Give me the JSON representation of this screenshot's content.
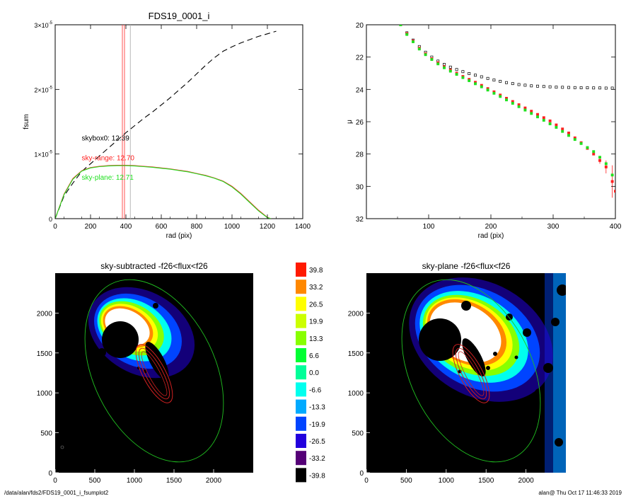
{
  "footer": {
    "path": "/data/alan/fds2/FDS19_0001_i_fsumplot2",
    "stamp": "alan@  Thu Oct 17 11:46:33 2019"
  },
  "chart_data": [
    {
      "type": "line",
      "title": "FDS19_0001_i",
      "xlabel": "rad (pix)",
      "ylabel": "fsum",
      "xlim": [
        0,
        1400
      ],
      "ylim": [
        0,
        3e-05
      ],
      "xticks": [
        0,
        200,
        400,
        600,
        800,
        1000,
        1200,
        1400
      ],
      "xtick_labels": [
        "0",
        "200",
        "400",
        "600",
        "800",
        "1000",
        "1200",
        "1400"
      ],
      "yticks": [
        0,
        1e-05,
        2e-05,
        3e-05
      ],
      "ytick_labels": [
        {
          "mantissa": "0",
          "exponent": ""
        },
        {
          "mantissa": "1×10",
          "exponent": "-5"
        },
        {
          "mantissa": "2×10",
          "exponent": "-5"
        },
        {
          "mantissa": "3×10",
          "exponent": "-5"
        }
      ],
      "annotations": [
        {
          "text": "skybox0: 12.39",
          "x": 230,
          "y": 1.21e-05,
          "color": "#000000"
        },
        {
          "text": "sky-range: 12.70",
          "x": 230,
          "y": 9.05e-06,
          "color": "#ff2020"
        },
        {
          "text": "sky-plane: 12.71",
          "x": 230,
          "y": 6e-06,
          "color": "#20e020"
        }
      ],
      "vlines": [
        {
          "x": 380,
          "color": "#ff4040"
        },
        {
          "x": 392,
          "color": "#ff4040"
        },
        {
          "x": 425,
          "color": "#b0b0b0"
        }
      ],
      "series": [
        {
          "color": "#000000",
          "style": "dashed",
          "x": [
            0,
            50,
            100,
            150,
            200,
            250,
            300,
            350,
            400,
            450,
            500,
            550,
            600,
            650,
            700,
            750,
            800,
            850,
            900,
            950,
            1000,
            1050,
            1100,
            1150,
            1200,
            1250
          ],
          "y": [
            0,
            3.5e-06,
            5.5e-06,
            7.3e-06,
            8.5e-06,
            9.7e-06,
            1.09e-05,
            1.21e-05,
            1.33e-05,
            1.44e-05,
            1.55e-05,
            1.65e-05,
            1.76e-05,
            1.87e-05,
            1.99e-05,
            2.11e-05,
            2.24e-05,
            2.37e-05,
            2.49e-05,
            2.59e-05,
            2.66e-05,
            2.72e-05,
            2.77e-05,
            2.82e-05,
            2.86e-05,
            2.9e-05
          ]
        },
        {
          "color": "#ff2020",
          "style": "solid",
          "x": [
            0,
            50,
            100,
            150,
            200,
            250,
            300,
            350,
            400,
            450,
            500,
            550,
            600,
            650,
            700,
            750,
            800,
            850,
            900,
            950,
            1000,
            1050,
            1100,
            1150,
            1200,
            1220
          ],
          "y": [
            0,
            3.8e-06,
            6.2e-06,
            7.4e-06,
            7.9e-06,
            8.1e-06,
            8.2e-06,
            8.25e-06,
            8.25e-06,
            8.2e-06,
            8.1e-06,
            8e-06,
            7.85e-06,
            7.7e-06,
            7.5e-06,
            7.3e-06,
            7e-06,
            6.7e-06,
            6.3e-06,
            5.8e-06,
            5e-06,
            3.9e-06,
            2.6e-06,
            1.3e-06,
            2e-07,
            0
          ]
        },
        {
          "color": "#20e020",
          "style": "solid",
          "x": [
            0,
            50,
            100,
            150,
            200,
            250,
            300,
            350,
            400,
            450,
            500,
            550,
            600,
            650,
            700,
            750,
            800,
            850,
            900,
            950,
            1000,
            1050,
            1100,
            1150,
            1200,
            1220
          ],
          "y": [
            0,
            3.7e-06,
            6.1e-06,
            7.35e-06,
            7.85e-06,
            8.05e-06,
            8.15e-06,
            8.2e-06,
            8.2e-06,
            8.15e-06,
            8.05e-06,
            7.95e-06,
            7.8e-06,
            7.65e-06,
            7.45e-06,
            7.25e-06,
            6.95e-06,
            6.65e-06,
            6.25e-06,
            5.75e-06,
            4.9e-06,
            3.8e-06,
            2.5e-06,
            1.2e-06,
            1.5e-07,
            0
          ]
        }
      ]
    },
    {
      "type": "scatter",
      "title": "",
      "xlabel": "rad (pix)",
      "ylabel": "μ",
      "xlim": [
        0,
        400
      ],
      "ylim": [
        32,
        20
      ],
      "xticks": [
        100,
        200,
        300,
        400
      ],
      "xtick_labels": [
        "100",
        "200",
        "300",
        "400"
      ],
      "yticks": [
        20,
        22,
        24,
        26,
        28,
        30,
        32
      ],
      "ytick_labels": [
        "20",
        "22",
        "24",
        "26",
        "28",
        "30",
        "32"
      ],
      "series": [
        {
          "color": "#000000",
          "marker": "open-square",
          "x": [
            55,
            65,
            75,
            85,
            95,
            105,
            115,
            125,
            135,
            145,
            155,
            165,
            175,
            185,
            195,
            205,
            215,
            225,
            235,
            245,
            255,
            265,
            275,
            285,
            295,
            305,
            315,
            325,
            335,
            345,
            355,
            365,
            375,
            385,
            395
          ],
          "y": [
            20.0,
            20.5,
            20.95,
            21.35,
            21.7,
            22.0,
            22.25,
            22.45,
            22.62,
            22.77,
            22.9,
            23.02,
            23.12,
            23.22,
            23.32,
            23.42,
            23.5,
            23.58,
            23.64,
            23.7,
            23.74,
            23.78,
            23.8,
            23.82,
            23.84,
            23.86,
            23.87,
            23.88,
            23.89,
            23.9,
            23.9,
            23.91,
            23.91,
            23.92,
            23.92
          ]
        },
        {
          "color": "#ff2020",
          "marker": "filled-square",
          "x": [
            55,
            65,
            75,
            85,
            95,
            105,
            115,
            125,
            135,
            145,
            155,
            165,
            175,
            185,
            195,
            205,
            215,
            225,
            235,
            245,
            255,
            265,
            275,
            285,
            295,
            305,
            315,
            325,
            335,
            345,
            355,
            365,
            375,
            385,
            395,
            400
          ],
          "y": [
            20.0,
            20.55,
            21.0,
            21.45,
            21.8,
            22.1,
            22.35,
            22.6,
            22.8,
            23.0,
            23.2,
            23.38,
            23.56,
            23.75,
            23.95,
            24.15,
            24.35,
            24.55,
            24.75,
            24.95,
            25.15,
            25.35,
            25.55,
            25.75,
            25.95,
            26.2,
            26.45,
            26.7,
            27.0,
            27.3,
            27.65,
            28.0,
            28.4,
            28.8,
            29.7,
            30.3
          ],
          "err_x": [
            375,
            385,
            395
          ],
          "err_y": [
            0.2,
            0.4,
            1.0
          ]
        },
        {
          "color": "#20e020",
          "marker": "filled-square",
          "x": [
            55,
            65,
            75,
            85,
            95,
            105,
            115,
            125,
            135,
            145,
            155,
            165,
            175,
            185,
            195,
            205,
            215,
            225,
            235,
            245,
            255,
            265,
            275,
            285,
            295,
            305,
            315,
            325,
            335,
            345,
            355,
            365,
            375,
            385,
            395
          ],
          "y": [
            20.0,
            20.6,
            21.05,
            21.5,
            21.85,
            22.15,
            22.42,
            22.66,
            22.87,
            23.07,
            23.27,
            23.46,
            23.65,
            23.84,
            24.04,
            24.24,
            24.44,
            24.65,
            24.86,
            25.07,
            25.28,
            25.49,
            25.7,
            25.91,
            26.13,
            26.35,
            26.6,
            26.85,
            27.1,
            27.35,
            27.6,
            27.85,
            28.2,
            28.6,
            29.3
          ]
        }
      ]
    },
    {
      "type": "heatmap",
      "title": "sky-subtracted -f26<flux<f26",
      "xlim": [
        0,
        2500
      ],
      "ylim": [
        0,
        2500
      ],
      "xticks": [
        0,
        500,
        1000,
        1500,
        2000
      ],
      "xtick_labels": [
        "0",
        "500",
        "1000",
        "1500",
        "2000"
      ],
      "yticks": [
        0,
        500,
        1000,
        1500,
        2000
      ],
      "ytick_labels": [
        "0",
        "500",
        "1000",
        "1500",
        "2000"
      ]
    },
    {
      "type": "heatmap",
      "title": "sky-plane -f26<flux<f26",
      "xlim": [
        0,
        2500
      ],
      "ylim": [
        0,
        2500
      ],
      "xticks": [
        0,
        500,
        1000,
        1500,
        2000
      ],
      "xtick_labels": [
        "0",
        "500",
        "1000",
        "1500",
        "2000"
      ],
      "yticks": [
        0,
        500,
        1000,
        1500,
        2000
      ],
      "ytick_labels": [
        "0",
        "500",
        "1000",
        "1500",
        "2000"
      ]
    }
  ],
  "colorbar": {
    "labels": [
      "39.8",
      "33.2",
      "26.5",
      "19.9",
      "13.3",
      "6.6",
      "0.0",
      "-6.6",
      "-13.3",
      "-19.9",
      "-26.5",
      "-33.2",
      "-39.8"
    ],
    "colors": [
      "#ff1a00",
      "#ff8800",
      "#ffff00",
      "#ccff00",
      "#88ff00",
      "#00ff33",
      "#00ff99",
      "#00ffee",
      "#00aaff",
      "#0044ff",
      "#2200dd",
      "#550077",
      "#000000"
    ]
  }
}
